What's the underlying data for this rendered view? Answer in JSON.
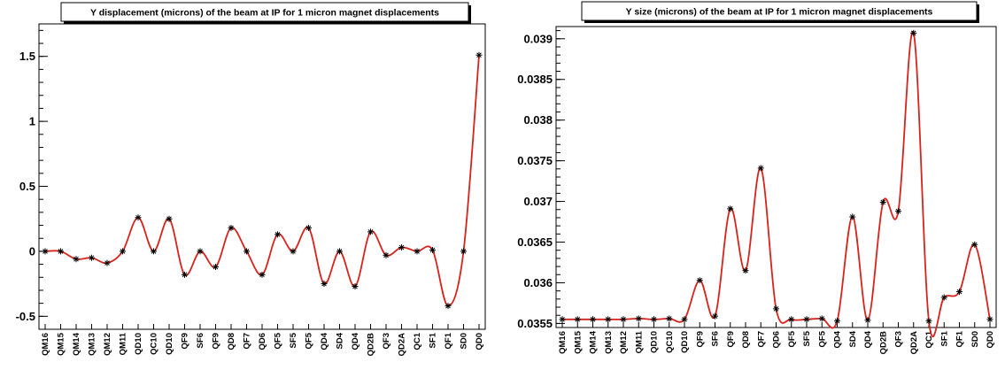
{
  "chart_data": [
    {
      "type": "line",
      "title": "Y displacement (microns) of the beam at IP for 1 micron magnet displacements",
      "xlabel": "",
      "ylabel": "",
      "categories": [
        "QM16",
        "QM15",
        "QM14",
        "QM13",
        "QM12",
        "QM11",
        "QD10",
        "QC10",
        "QD10",
        "QF9",
        "SF6",
        "QF9",
        "QD8",
        "QF7",
        "QD6",
        "QF5",
        "SF5",
        "QF5",
        "QD4",
        "SD4",
        "QD4",
        "QD2B",
        "QF3",
        "QD2A",
        "QC1",
        "SF1",
        "QF1",
        "SD0",
        "QD0"
      ],
      "series": [
        {
          "values": [
            0.0,
            0.0,
            -0.06,
            -0.05,
            -0.09,
            0.0,
            0.26,
            0.0,
            0.25,
            -0.18,
            0.0,
            -0.12,
            0.18,
            0.0,
            -0.18,
            0.13,
            0.0,
            0.18,
            -0.25,
            0.0,
            -0.27,
            0.15,
            -0.03,
            0.03,
            0.0,
            0.01,
            -0.42,
            0.0,
            1.51
          ]
        }
      ],
      "ylim": [
        -0.6,
        1.75
      ],
      "yticks": [
        -0.5,
        0,
        0.5,
        1,
        1.5
      ],
      "ytick_labels": [
        "-0.5",
        "0",
        "0.5",
        "1",
        "1.5"
      ],
      "line_color": "#d8231c",
      "marker_color": "#000000",
      "grid": false
    },
    {
      "type": "line",
      "title": "Y size (microns) of the beam at IP for 1 micron magnet displacements",
      "xlabel": "",
      "ylabel": "",
      "categories": [
        "QM16",
        "QM15",
        "QM14",
        "QM13",
        "QM12",
        "QM11",
        "QD10",
        "QC10",
        "QD10",
        "QF9",
        "SF6",
        "QF9",
        "QD8",
        "QF7",
        "QD6",
        "QF5",
        "SF5",
        "QF5",
        "QD4",
        "SD4",
        "QD4",
        "QD2B",
        "QF3",
        "QD2A",
        "QC1",
        "SF1",
        "QF1",
        "SD0",
        "QD0"
      ],
      "series": [
        {
          "values": [
            0.03555,
            0.03555,
            0.03555,
            0.03555,
            0.03555,
            0.03556,
            0.03555,
            0.03556,
            0.03555,
            0.03603,
            0.03559,
            0.03691,
            0.03615,
            0.03741,
            0.03568,
            0.03555,
            0.03555,
            0.03556,
            0.03553,
            0.03681,
            0.03554,
            0.03699,
            0.03688,
            0.03907,
            0.03553,
            0.03582,
            0.03589,
            0.03647,
            0.03555
          ]
        }
      ],
      "ylim": [
        0.03545,
        0.03915
      ],
      "yticks": [
        0.0355,
        0.036,
        0.0365,
        0.037,
        0.0375,
        0.038,
        0.0385,
        0.039
      ],
      "ytick_labels": [
        "0.0355",
        "0.036",
        "0.0365",
        "0.037",
        "0.0375",
        "0.038",
        "0.0385",
        "0.039"
      ],
      "line_color": "#d8231c",
      "marker_color": "#000000",
      "grid": false
    }
  ]
}
